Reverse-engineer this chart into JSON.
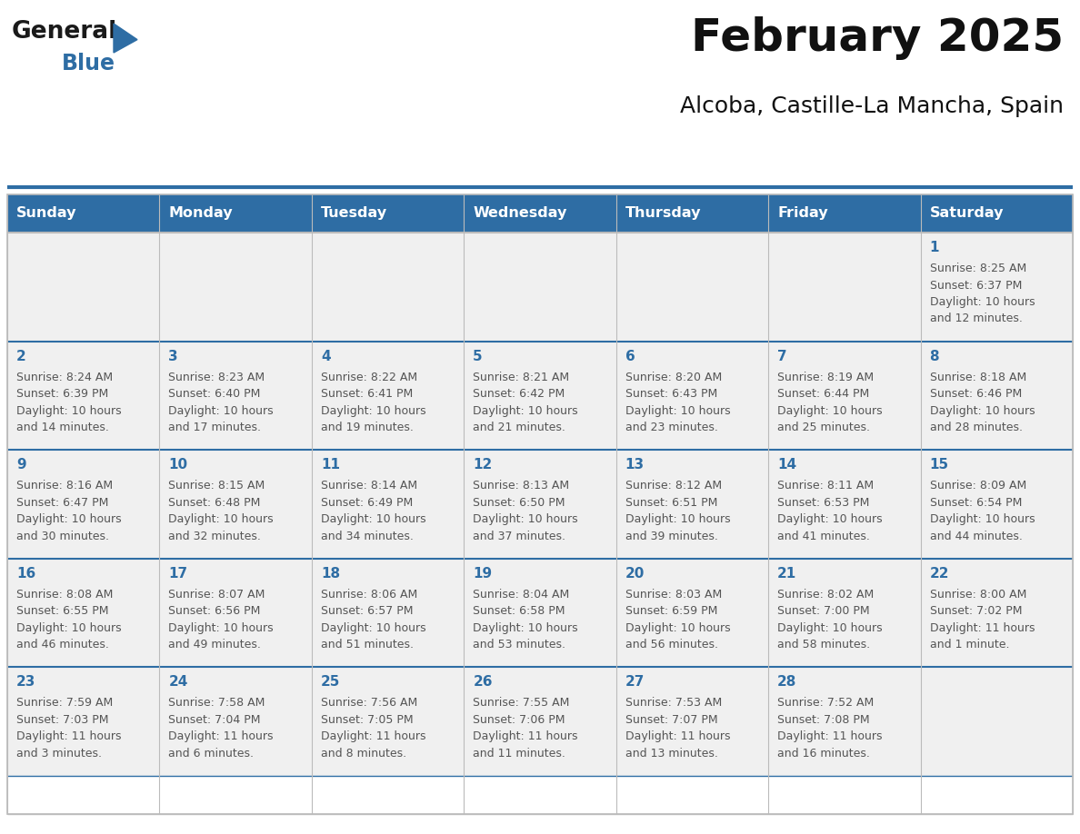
{
  "title": "February 2025",
  "subtitle": "Alcoba, Castille-La Mancha, Spain",
  "header_bg": "#2E6DA4",
  "header_text": "#FFFFFF",
  "day_names": [
    "Sunday",
    "Monday",
    "Tuesday",
    "Wednesday",
    "Thursday",
    "Friday",
    "Saturday"
  ],
  "cell_bg": "#F0F0F0",
  "text_color": "#555555",
  "day_num_color": "#2E6DA4",
  "background": "#FFFFFF",
  "logo_general_color": "#1a1a1a",
  "logo_blue_color": "#2E6DA4",
  "grid_color": "#BBBBBB",
  "header_line_color": "#2E6DA4",
  "title_fontsize": 36,
  "subtitle_fontsize": 18,
  "header_fontsize": 11.5,
  "day_num_fontsize": 11,
  "info_fontsize": 9,
  "weeks": [
    [
      {
        "day": null,
        "info": null
      },
      {
        "day": null,
        "info": null
      },
      {
        "day": null,
        "info": null
      },
      {
        "day": null,
        "info": null
      },
      {
        "day": null,
        "info": null
      },
      {
        "day": null,
        "info": null
      },
      {
        "day": "1",
        "info": "Sunrise: 8:25 AM\nSunset: 6:37 PM\nDaylight: 10 hours\nand 12 minutes."
      }
    ],
    [
      {
        "day": "2",
        "info": "Sunrise: 8:24 AM\nSunset: 6:39 PM\nDaylight: 10 hours\nand 14 minutes."
      },
      {
        "day": "3",
        "info": "Sunrise: 8:23 AM\nSunset: 6:40 PM\nDaylight: 10 hours\nand 17 minutes."
      },
      {
        "day": "4",
        "info": "Sunrise: 8:22 AM\nSunset: 6:41 PM\nDaylight: 10 hours\nand 19 minutes."
      },
      {
        "day": "5",
        "info": "Sunrise: 8:21 AM\nSunset: 6:42 PM\nDaylight: 10 hours\nand 21 minutes."
      },
      {
        "day": "6",
        "info": "Sunrise: 8:20 AM\nSunset: 6:43 PM\nDaylight: 10 hours\nand 23 minutes."
      },
      {
        "day": "7",
        "info": "Sunrise: 8:19 AM\nSunset: 6:44 PM\nDaylight: 10 hours\nand 25 minutes."
      },
      {
        "day": "8",
        "info": "Sunrise: 8:18 AM\nSunset: 6:46 PM\nDaylight: 10 hours\nand 28 minutes."
      }
    ],
    [
      {
        "day": "9",
        "info": "Sunrise: 8:16 AM\nSunset: 6:47 PM\nDaylight: 10 hours\nand 30 minutes."
      },
      {
        "day": "10",
        "info": "Sunrise: 8:15 AM\nSunset: 6:48 PM\nDaylight: 10 hours\nand 32 minutes."
      },
      {
        "day": "11",
        "info": "Sunrise: 8:14 AM\nSunset: 6:49 PM\nDaylight: 10 hours\nand 34 minutes."
      },
      {
        "day": "12",
        "info": "Sunrise: 8:13 AM\nSunset: 6:50 PM\nDaylight: 10 hours\nand 37 minutes."
      },
      {
        "day": "13",
        "info": "Sunrise: 8:12 AM\nSunset: 6:51 PM\nDaylight: 10 hours\nand 39 minutes."
      },
      {
        "day": "14",
        "info": "Sunrise: 8:11 AM\nSunset: 6:53 PM\nDaylight: 10 hours\nand 41 minutes."
      },
      {
        "day": "15",
        "info": "Sunrise: 8:09 AM\nSunset: 6:54 PM\nDaylight: 10 hours\nand 44 minutes."
      }
    ],
    [
      {
        "day": "16",
        "info": "Sunrise: 8:08 AM\nSunset: 6:55 PM\nDaylight: 10 hours\nand 46 minutes."
      },
      {
        "day": "17",
        "info": "Sunrise: 8:07 AM\nSunset: 6:56 PM\nDaylight: 10 hours\nand 49 minutes."
      },
      {
        "day": "18",
        "info": "Sunrise: 8:06 AM\nSunset: 6:57 PM\nDaylight: 10 hours\nand 51 minutes."
      },
      {
        "day": "19",
        "info": "Sunrise: 8:04 AM\nSunset: 6:58 PM\nDaylight: 10 hours\nand 53 minutes."
      },
      {
        "day": "20",
        "info": "Sunrise: 8:03 AM\nSunset: 6:59 PM\nDaylight: 10 hours\nand 56 minutes."
      },
      {
        "day": "21",
        "info": "Sunrise: 8:02 AM\nSunset: 7:00 PM\nDaylight: 10 hours\nand 58 minutes."
      },
      {
        "day": "22",
        "info": "Sunrise: 8:00 AM\nSunset: 7:02 PM\nDaylight: 11 hours\nand 1 minute."
      }
    ],
    [
      {
        "day": "23",
        "info": "Sunrise: 7:59 AM\nSunset: 7:03 PM\nDaylight: 11 hours\nand 3 minutes."
      },
      {
        "day": "24",
        "info": "Sunrise: 7:58 AM\nSunset: 7:04 PM\nDaylight: 11 hours\nand 6 minutes."
      },
      {
        "day": "25",
        "info": "Sunrise: 7:56 AM\nSunset: 7:05 PM\nDaylight: 11 hours\nand 8 minutes."
      },
      {
        "day": "26",
        "info": "Sunrise: 7:55 AM\nSunset: 7:06 PM\nDaylight: 11 hours\nand 11 minutes."
      },
      {
        "day": "27",
        "info": "Sunrise: 7:53 AM\nSunset: 7:07 PM\nDaylight: 11 hours\nand 13 minutes."
      },
      {
        "day": "28",
        "info": "Sunrise: 7:52 AM\nSunset: 7:08 PM\nDaylight: 11 hours\nand 16 minutes."
      },
      {
        "day": null,
        "info": null
      }
    ]
  ]
}
